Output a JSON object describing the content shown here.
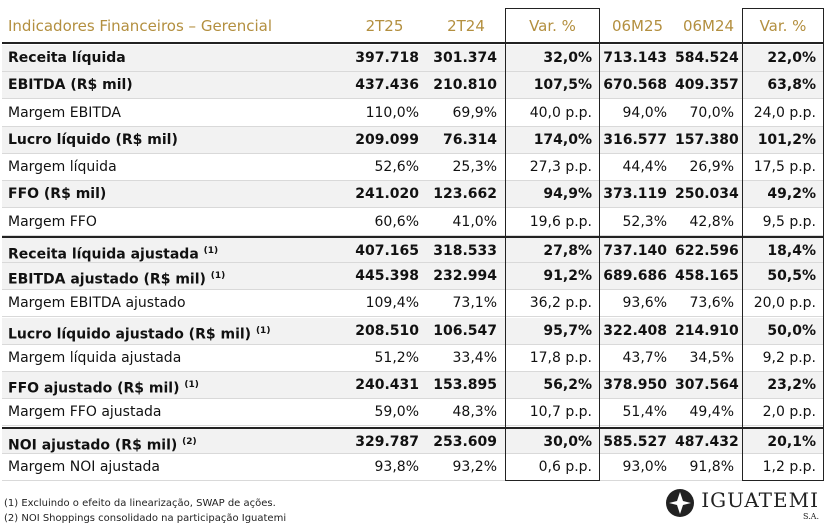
{
  "table": {
    "headers": [
      "Indicadores Financeiros – Gerencial",
      "2T25",
      "2T24",
      "Var. %",
      "06M25",
      "06M24",
      "Var. %"
    ],
    "rows": [
      {
        "label": "Receita líquida",
        "bold": true,
        "values": [
          "397.718",
          "301.374",
          "32,0%",
          "713.143",
          "584.524",
          "22,0%"
        ]
      },
      {
        "label": "EBITDA (R$ mil)",
        "bold": true,
        "values": [
          "437.436",
          "210.810",
          "107,5%",
          "670.568",
          "409.357",
          "63,8%"
        ]
      },
      {
        "label": "Margem EBITDA",
        "bold": false,
        "values": [
          "110,0%",
          "69,9%",
          "40,0 p.p.",
          "94,0%",
          "70,0%",
          "24,0 p.p."
        ]
      },
      {
        "label": "Lucro líquido (R$ mil)",
        "bold": true,
        "values": [
          "209.099",
          "76.314",
          "174,0%",
          "316.577",
          "157.380",
          "101,2%"
        ]
      },
      {
        "label": "Margem líquida",
        "bold": false,
        "values": [
          "52,6%",
          "25,3%",
          "27,3 p.p.",
          "44,4%",
          "26,9%",
          "17,5 p.p."
        ]
      },
      {
        "label": "FFO (R$ mil)",
        "bold": true,
        "values": [
          "241.020",
          "123.662",
          "94,9%",
          "373.119",
          "250.034",
          "49,2%"
        ]
      },
      {
        "label": "Margem FFO",
        "bold": false,
        "values": [
          "60,6%",
          "41,0%",
          "19,6 p.p.",
          "52,3%",
          "42,8%",
          "9,5 p.p."
        ]
      },
      {
        "label": "Receita líquida ajustada",
        "note": "(1)",
        "bold": true,
        "values": [
          "407.165",
          "318.533",
          "27,8%",
          "737.140",
          "622.596",
          "18,4%"
        ]
      },
      {
        "label": "EBITDA ajustado (R$ mil)",
        "note": "(1)",
        "bold": true,
        "values": [
          "445.398",
          "232.994",
          "91,2%",
          "689.686",
          "458.165",
          "50,5%"
        ]
      },
      {
        "label": "Margem EBITDA ajustado",
        "bold": false,
        "values": [
          "109,4%",
          "73,1%",
          "36,2 p.p.",
          "93,6%",
          "73,6%",
          "20,0 p.p."
        ]
      },
      {
        "label": "Lucro líquido ajustado (R$ mil)",
        "note": "(1)",
        "bold": true,
        "values": [
          "208.510",
          "106.547",
          "95,7%",
          "322.408",
          "214.910",
          "50,0%"
        ]
      },
      {
        "label": "Margem líquida ajustada",
        "bold": false,
        "values": [
          "51,2%",
          "33,4%",
          "17,8 p.p.",
          "43,7%",
          "34,5%",
          "9,2 p.p."
        ]
      },
      {
        "label": "FFO ajustado (R$ mil)",
        "note": "(1)",
        "bold": true,
        "values": [
          "240.431",
          "153.895",
          "56,2%",
          "378.950",
          "307.564",
          "23,2%"
        ]
      },
      {
        "label": "Margem FFO ajustada",
        "bold": false,
        "values": [
          "59,0%",
          "48,3%",
          "10,7 p.p.",
          "51,4%",
          "49,4%",
          "2,0 p.p."
        ]
      },
      {
        "label": "NOI ajustado (R$ mil)",
        "note": "(2)",
        "bold": true,
        "values": [
          "329.787",
          "253.609",
          "30,0%",
          "585.527",
          "487.432",
          "20,1%"
        ]
      },
      {
        "label": "Margem NOI ajustada",
        "bold": false,
        "values": [
          "93,8%",
          "93,2%",
          "0,6 p.p.",
          "93,0%",
          "91,8%",
          "1,2 p.p."
        ]
      }
    ]
  },
  "footnotes": [
    "(1) Excluindo o efeito da linearização, SWAP de ações.",
    "(2) NOI Shoppings consolidado na participação Iguatemi"
  ],
  "logo": {
    "name": "IGUATEMI",
    "suffix": "S.A."
  }
}
